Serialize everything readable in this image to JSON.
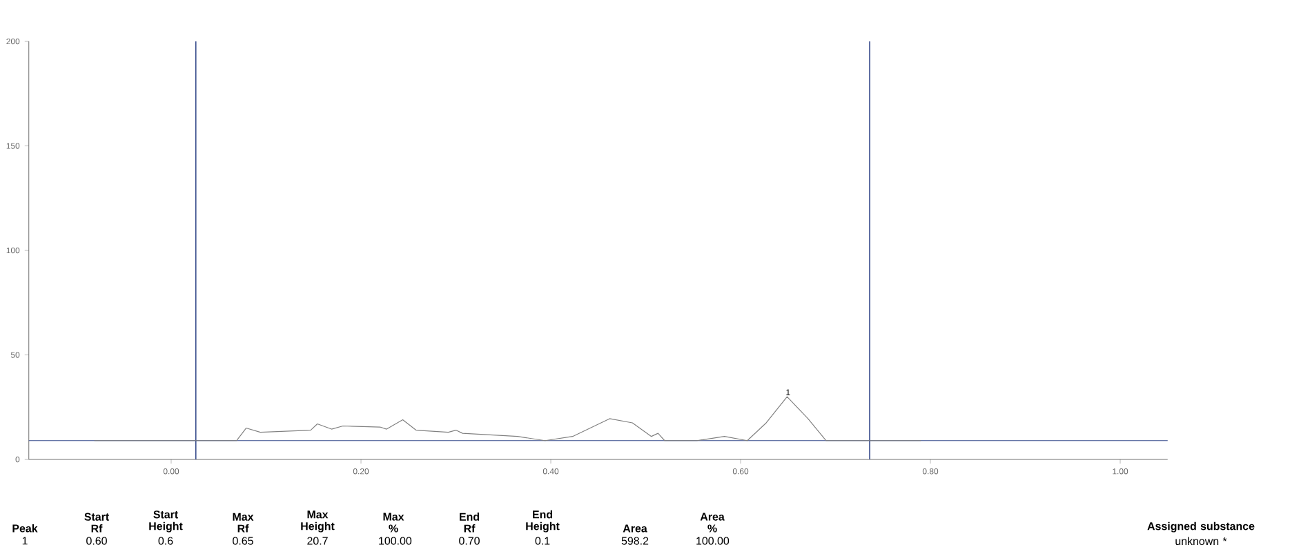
{
  "chart_data": {
    "type": "line",
    "xlim": [
      -0.15,
      1.05
    ],
    "ylim": [
      0,
      200
    ],
    "xticks": [
      {
        "value": 0,
        "label": "0.00"
      },
      {
        "value": 0.2,
        "label": "0.20"
      },
      {
        "value": 0.4,
        "label": "0.40"
      },
      {
        "value": 0.6,
        "label": "0.60"
      },
      {
        "value": 0.8,
        "label": "0.80"
      },
      {
        "value": 1,
        "label": "1.00"
      }
    ],
    "yticks": [
      0,
      50,
      100,
      150,
      200
    ],
    "grid": false,
    "marker": "none",
    "line_style": "solid",
    "series": [
      {
        "color": "#808080",
        "x": [
          -0.081,
          0.069,
          0.079,
          0.094,
          0.147,
          0.154,
          0.169,
          0.181,
          0.22,
          0.227,
          0.244,
          0.258,
          0.292,
          0.3,
          0.307,
          0.365,
          0.394,
          0.423,
          0.462,
          0.486,
          0.506,
          0.513,
          0.52,
          0.554,
          0.583,
          0.607,
          0.627,
          0.649,
          0.671,
          0.69,
          0.79
        ],
        "values": [
          9,
          9,
          15,
          13,
          14,
          17,
          14.5,
          16,
          15.5,
          14.5,
          19,
          14,
          13,
          14,
          12.5,
          11,
          9,
          11,
          19.5,
          17.5,
          11,
          12.5,
          9,
          9,
          11,
          9,
          17.5,
          30,
          19.5,
          9,
          9
        ]
      }
    ],
    "ref_lines": [
      {
        "axis": "x",
        "value": 0.026,
        "color": "#34498a"
      },
      {
        "axis": "x",
        "value": 0.736,
        "color": "#34498a"
      },
      {
        "axis": "y",
        "value": 9,
        "color": "#34498a"
      }
    ],
    "annotations": [
      {
        "text": "1",
        "x": 0.65,
        "y": 30
      },
      "Peak",
      "Start Rf",
      "Start Height",
      "Max Rf",
      "Max Height",
      "Max %",
      "End Rf",
      "End Height",
      "Area",
      "Area %",
      "Assigned substance",
      "1",
      "0.60",
      "0.6",
      "0.65",
      "20.7",
      "100.00",
      "0.70",
      "0.1",
      "598.2",
      "100.00",
      "unknown *"
    ]
  }
}
